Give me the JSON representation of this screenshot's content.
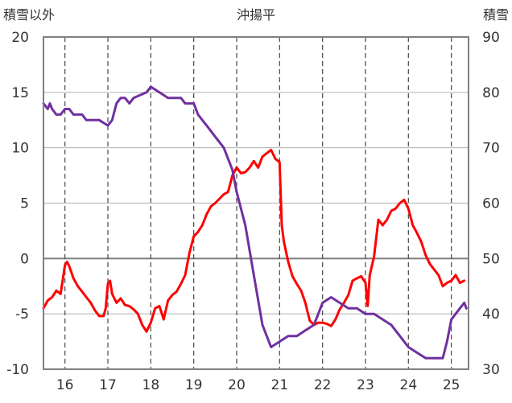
{
  "chart_data": {
    "type": "line",
    "title": "沖揚平",
    "ylabel_left": "積雪以外",
    "ylabel_right": "積雪",
    "x_categories": [
      "16",
      "17",
      "18",
      "19",
      "20",
      "21",
      "22",
      "23",
      "24",
      "25"
    ],
    "xlim": [
      15.5,
      25.4
    ],
    "ylim_left": [
      -10,
      20
    ],
    "ylim_right": [
      30,
      90
    ],
    "yticks_left": [
      20,
      15,
      10,
      5,
      0,
      -5,
      -10
    ],
    "yticks_right": [
      90,
      80,
      70,
      60,
      50,
      40,
      30
    ],
    "grid": true,
    "series": [
      {
        "axis": "left",
        "color": "#ff0000",
        "points": [
          [
            15.5,
            -4.5
          ],
          [
            15.6,
            -3.8
          ],
          [
            15.7,
            -3.5
          ],
          [
            15.8,
            -2.9
          ],
          [
            15.9,
            -3.2
          ],
          [
            16.0,
            -0.6
          ],
          [
            16.05,
            -0.3
          ],
          [
            16.1,
            -0.7
          ],
          [
            16.2,
            -1.8
          ],
          [
            16.3,
            -2.5
          ],
          [
            16.4,
            -3.0
          ],
          [
            16.5,
            -3.5
          ],
          [
            16.6,
            -4.0
          ],
          [
            16.7,
            -4.7
          ],
          [
            16.8,
            -5.2
          ],
          [
            16.9,
            -5.2
          ],
          [
            16.95,
            -4.5
          ],
          [
            17.0,
            -2.3
          ],
          [
            17.05,
            -2.0
          ],
          [
            17.1,
            -3.2
          ],
          [
            17.2,
            -4.0
          ],
          [
            17.3,
            -3.6
          ],
          [
            17.4,
            -4.2
          ],
          [
            17.5,
            -4.3
          ],
          [
            17.6,
            -4.6
          ],
          [
            17.7,
            -5.0
          ],
          [
            17.8,
            -6.0
          ],
          [
            17.9,
            -6.6
          ],
          [
            18.0,
            -5.8
          ],
          [
            18.1,
            -4.5
          ],
          [
            18.2,
            -4.3
          ],
          [
            18.3,
            -5.5
          ],
          [
            18.4,
            -3.8
          ],
          [
            18.5,
            -3.3
          ],
          [
            18.6,
            -3.0
          ],
          [
            18.7,
            -2.3
          ],
          [
            18.8,
            -1.5
          ],
          [
            18.9,
            0.5
          ],
          [
            19.0,
            2.0
          ],
          [
            19.1,
            2.4
          ],
          [
            19.2,
            3.0
          ],
          [
            19.3,
            4.0
          ],
          [
            19.4,
            4.7
          ],
          [
            19.5,
            5.0
          ],
          [
            19.6,
            5.4
          ],
          [
            19.7,
            5.8
          ],
          [
            19.8,
            6.0
          ],
          [
            19.9,
            7.5
          ],
          [
            20.0,
            8.2
          ],
          [
            20.1,
            7.7
          ],
          [
            20.2,
            7.8
          ],
          [
            20.3,
            8.2
          ],
          [
            20.4,
            8.8
          ],
          [
            20.5,
            8.2
          ],
          [
            20.6,
            9.2
          ],
          [
            20.7,
            9.5
          ],
          [
            20.8,
            9.8
          ],
          [
            20.9,
            9.0
          ],
          [
            21.0,
            8.7
          ],
          [
            21.05,
            3.0
          ],
          [
            21.1,
            1.5
          ],
          [
            21.2,
            -0.3
          ],
          [
            21.3,
            -1.6
          ],
          [
            21.4,
            -2.3
          ],
          [
            21.5,
            -2.9
          ],
          [
            21.6,
            -4.0
          ],
          [
            21.7,
            -5.6
          ],
          [
            21.8,
            -6.0
          ],
          [
            21.9,
            -5.8
          ],
          [
            22.0,
            -5.8
          ],
          [
            22.1,
            -5.9
          ],
          [
            22.2,
            -6.1
          ],
          [
            22.3,
            -5.5
          ],
          [
            22.4,
            -4.6
          ],
          [
            22.5,
            -4.0
          ],
          [
            22.6,
            -3.3
          ],
          [
            22.7,
            -2.0
          ],
          [
            22.8,
            -1.8
          ],
          [
            22.9,
            -1.6
          ],
          [
            23.0,
            -2.2
          ],
          [
            23.05,
            -4.3
          ],
          [
            23.1,
            -1.5
          ],
          [
            23.2,
            0.2
          ],
          [
            23.3,
            3.5
          ],
          [
            23.4,
            3.0
          ],
          [
            23.5,
            3.5
          ],
          [
            23.6,
            4.3
          ],
          [
            23.7,
            4.5
          ],
          [
            23.8,
            5.0
          ],
          [
            23.9,
            5.3
          ],
          [
            24.0,
            4.5
          ],
          [
            24.1,
            3.0
          ],
          [
            24.2,
            2.3
          ],
          [
            24.3,
            1.5
          ],
          [
            24.4,
            0.3
          ],
          [
            24.5,
            -0.5
          ],
          [
            24.6,
            -1.0
          ],
          [
            24.7,
            -1.5
          ],
          [
            24.8,
            -2.5
          ],
          [
            24.9,
            -2.2
          ],
          [
            25.0,
            -2.0
          ],
          [
            25.1,
            -1.5
          ],
          [
            25.2,
            -2.2
          ],
          [
            25.3,
            -2.0
          ]
        ]
      },
      {
        "axis": "right",
        "color": "#7030a0",
        "points": [
          [
            15.5,
            78
          ],
          [
            15.6,
            77
          ],
          [
            15.65,
            78
          ],
          [
            15.7,
            77
          ],
          [
            15.8,
            76
          ],
          [
            15.9,
            76
          ],
          [
            16.0,
            77
          ],
          [
            16.1,
            77
          ],
          [
            16.2,
            76
          ],
          [
            16.4,
            76
          ],
          [
            16.5,
            75
          ],
          [
            16.8,
            75
          ],
          [
            17.0,
            74
          ],
          [
            17.1,
            75
          ],
          [
            17.2,
            78
          ],
          [
            17.3,
            79
          ],
          [
            17.4,
            79
          ],
          [
            17.5,
            78
          ],
          [
            17.6,
            79
          ],
          [
            17.9,
            80
          ],
          [
            18.0,
            81
          ],
          [
            18.2,
            80
          ],
          [
            18.4,
            79
          ],
          [
            18.7,
            79
          ],
          [
            18.8,
            78
          ],
          [
            19.0,
            78
          ],
          [
            19.1,
            76
          ],
          [
            19.3,
            74
          ],
          [
            19.5,
            72
          ],
          [
            19.7,
            70
          ],
          [
            19.9,
            66
          ],
          [
            20.0,
            62
          ],
          [
            20.2,
            56
          ],
          [
            20.4,
            47
          ],
          [
            20.6,
            38
          ],
          [
            20.8,
            34
          ],
          [
            21.0,
            35
          ],
          [
            21.2,
            36
          ],
          [
            21.4,
            36
          ],
          [
            21.6,
            37
          ],
          [
            21.8,
            38
          ],
          [
            22.0,
            42
          ],
          [
            22.2,
            43
          ],
          [
            22.4,
            42
          ],
          [
            22.6,
            41
          ],
          [
            22.8,
            41
          ],
          [
            23.0,
            40
          ],
          [
            23.2,
            40
          ],
          [
            23.4,
            39
          ],
          [
            23.6,
            38
          ],
          [
            23.8,
            36
          ],
          [
            24.0,
            34
          ],
          [
            24.2,
            33
          ],
          [
            24.4,
            32
          ],
          [
            24.6,
            32
          ],
          [
            24.8,
            32
          ],
          [
            24.9,
            35
          ],
          [
            25.0,
            39
          ],
          [
            25.1,
            40
          ],
          [
            25.2,
            41
          ],
          [
            25.3,
            42
          ],
          [
            25.35,
            41
          ]
        ]
      }
    ]
  }
}
